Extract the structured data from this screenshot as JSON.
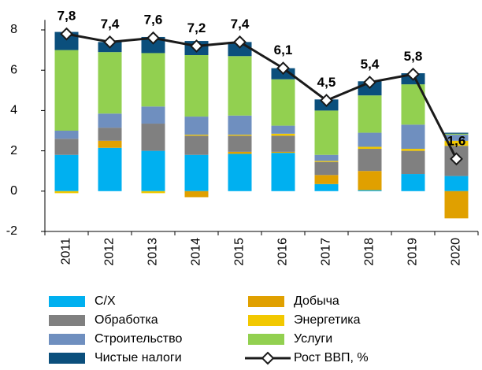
{
  "chart_data": {
    "type": "bar",
    "stacked": true,
    "categories": [
      "2011",
      "2012",
      "2013",
      "2014",
      "2015",
      "2016",
      "2017",
      "2018",
      "2019",
      "2020"
    ],
    "series": [
      {
        "name": "С/Х",
        "color": "#00b0f0",
        "values": [
          1.8,
          2.15,
          2.0,
          1.8,
          1.85,
          1.9,
          0.35,
          0.05,
          0.85,
          0.75
        ]
      },
      {
        "name": "Добыча",
        "color": "#e0a000",
        "values": [
          0,
          0.35,
          0,
          -0.3,
          0.1,
          0.05,
          0.45,
          0.95,
          0,
          -1.35
        ]
      },
      {
        "name": "Обработка",
        "color": "#808080",
        "values": [
          0.8,
          0.65,
          1.35,
          0.95,
          0.8,
          0.8,
          0.65,
          1.1,
          1.15,
          1.5
        ]
      },
      {
        "name": "Энергетика",
        "color": "#f2c800",
        "values": [
          -0.1,
          0,
          -0.1,
          0.05,
          0.05,
          0.1,
          0.05,
          0.1,
          0.1,
          0.25
        ]
      },
      {
        "name": "Строительство",
        "color": "#6f8fbf",
        "values": [
          0.4,
          0.7,
          0.85,
          0.9,
          0.95,
          0.4,
          0.3,
          0.7,
          1.2,
          0.3
        ]
      },
      {
        "name": "Услуги",
        "color": "#92d050",
        "values": [
          4.0,
          3.05,
          2.65,
          3.05,
          2.95,
          2.3,
          2.2,
          1.85,
          2.0,
          0.05
        ]
      },
      {
        "name": "Чистые налоги",
        "color": "#0b4f7c",
        "values": [
          0.9,
          0.5,
          0.8,
          0.7,
          0.7,
          0.55,
          0.55,
          0.7,
          0.55,
          0.05
        ]
      },
      {
        "name": "Рост ВВП, %",
        "type": "line",
        "color": "#1a1a1a",
        "values": [
          7.8,
          7.4,
          7.6,
          7.2,
          7.4,
          6.1,
          4.5,
          5.4,
          5.8,
          1.6
        ],
        "value_labels": [
          "7,8",
          "7,4",
          "7,6",
          "7,2",
          "7,4",
          "6,1",
          "4,5",
          "5,4",
          "5,8",
          "1,6"
        ]
      }
    ],
    "ylim": [
      -2,
      8.5
    ],
    "yticks": [
      -2,
      0,
      2,
      4,
      6,
      8
    ],
    "legend": "bottom"
  }
}
